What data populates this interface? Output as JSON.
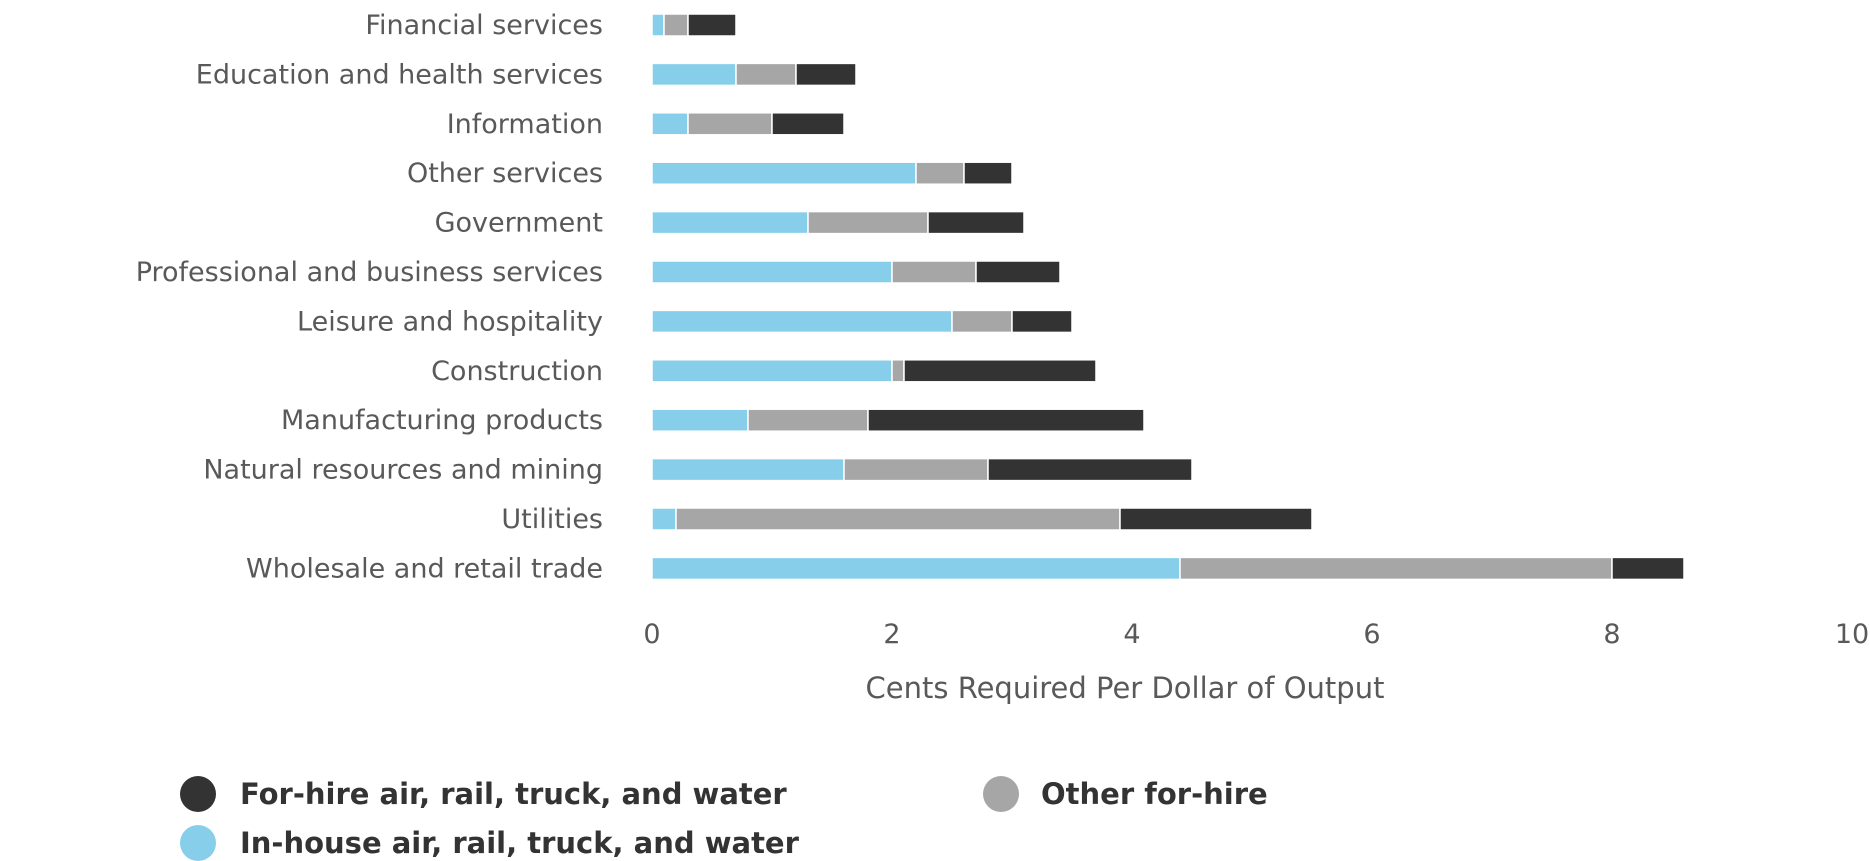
{
  "chart_data": {
    "type": "bar",
    "orientation": "horizontal",
    "stacked": true,
    "categories": [
      "Financial services",
      "Education and health services",
      "Information",
      "Other services",
      "Government",
      "Professional and business services",
      "Leisure and hospitality",
      "Construction",
      "Manufacturing products",
      "Natural resources and mining",
      "Utilities",
      "Wholesale and retail trade"
    ],
    "series": [
      {
        "name": "In-house air, rail, truck, and water",
        "color": "#87CEEB",
        "values": [
          0.1,
          0.7,
          0.3,
          2.2,
          1.3,
          2.0,
          2.5,
          2.0,
          0.8,
          1.6,
          0.2,
          4.4
        ]
      },
      {
        "name": "Other for-hire",
        "color": "#A6A6A6",
        "values": [
          0.2,
          0.5,
          0.7,
          0.4,
          1.0,
          0.7,
          0.5,
          0.1,
          1.0,
          1.2,
          3.7,
          3.6
        ]
      },
      {
        "name": "For-hire air, rail, truck, and water",
        "color": "#333333",
        "values": [
          0.4,
          0.5,
          0.6,
          0.4,
          0.8,
          0.7,
          0.5,
          1.6,
          2.3,
          1.7,
          1.6,
          0.6
        ]
      }
    ],
    "xlabel": "Cents Required Per Dollar of Output",
    "ylabel": "",
    "xlim": [
      0,
      10
    ],
    "xticks": [
      "0",
      "2",
      "4",
      "6",
      "8",
      "10"
    ],
    "grid": false,
    "legend": {
      "placement": "bottom-left",
      "items": [
        {
          "label": "For-hire air, rail, truck, and water",
          "color": "#333333"
        },
        {
          "label": "Other for-hire",
          "color": "#A6A6A6"
        },
        {
          "label": "In-house air, rail, truck, and water",
          "color": "#87CEEB"
        }
      ]
    }
  }
}
